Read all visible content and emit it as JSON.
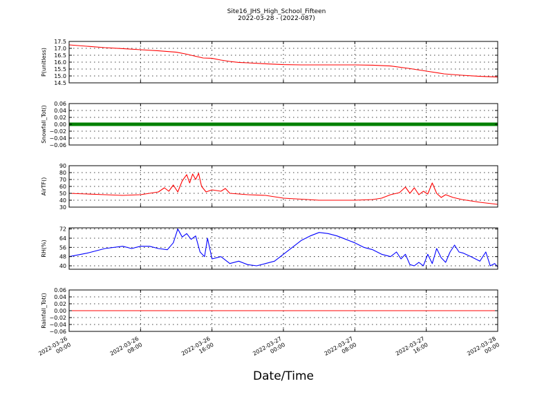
{
  "figure": {
    "title_line1": "Site16_JHS_High_School_Fifteen",
    "title_line2": "2022-03-28 - (2022-087)",
    "xlabel": "Date/Time",
    "x_range": [
      "2022-03-26 00:00",
      "2022-03-28 00:00"
    ],
    "x_tick_labels": [
      [
        "2022-03-26",
        "00:00"
      ],
      [
        "2022-03-26",
        "08:00"
      ],
      [
        "2022-03-26",
        "16:00"
      ],
      [
        "2022-03-27",
        "00:00"
      ],
      [
        "2022-03-27",
        "08:00"
      ],
      [
        "2022-03-27",
        "16:00"
      ],
      [
        "2022-03-28",
        "00:00"
      ]
    ],
    "x_tick_hours": [
      0,
      8,
      16,
      24,
      32,
      40,
      48
    ]
  },
  "chart_data": [
    {
      "type": "line",
      "ylabel": "P(unitless)",
      "color": "#ff0000",
      "ylim": [
        14.5,
        17.5
      ],
      "yticks": [
        14.5,
        15.0,
        15.5,
        16.0,
        16.5,
        17.0,
        17.5
      ],
      "ytick_labels": [
        "14.5",
        "15.0",
        "15.5",
        "16.0",
        "16.5",
        "17.0",
        "17.5"
      ],
      "grid": true,
      "points": [
        [
          "2022-03-26 00:00",
          17.25
        ],
        [
          "2022-03-26 02:00",
          17.15
        ],
        [
          "2022-03-26 04:00",
          17.05
        ],
        [
          "2022-03-26 06:00",
          16.98
        ],
        [
          "2022-03-26 08:00",
          16.9
        ],
        [
          "2022-03-26 10:00",
          16.82
        ],
        [
          "2022-03-26 12:00",
          16.72
        ],
        [
          "2022-03-26 13:00",
          16.6
        ],
        [
          "2022-03-26 14:00",
          16.45
        ],
        [
          "2022-03-26 15:00",
          16.3
        ],
        [
          "2022-03-26 16:00",
          16.28
        ],
        [
          "2022-03-26 17:00",
          16.15
        ],
        [
          "2022-03-26 18:00",
          16.05
        ],
        [
          "2022-03-26 19:00",
          15.98
        ],
        [
          "2022-03-26 20:00",
          15.95
        ],
        [
          "2022-03-26 22:00",
          15.88
        ],
        [
          "2022-03-27 00:00",
          15.82
        ],
        [
          "2022-03-27 02:00",
          15.8
        ],
        [
          "2022-03-27 04:00",
          15.8
        ],
        [
          "2022-03-27 06:00",
          15.8
        ],
        [
          "2022-03-27 08:00",
          15.8
        ],
        [
          "2022-03-27 10:00",
          15.78
        ],
        [
          "2022-03-27 12:00",
          15.72
        ],
        [
          "2022-03-27 14:00",
          15.55
        ],
        [
          "2022-03-27 16:00",
          15.35
        ],
        [
          "2022-03-27 18:00",
          15.15
        ],
        [
          "2022-03-27 20:00",
          15.05
        ],
        [
          "2022-03-27 22:00",
          14.97
        ],
        [
          "2022-03-28 00:00",
          14.92
        ]
      ]
    },
    {
      "type": "line",
      "ylabel": "Snowfall_Tot()",
      "color": "#008000",
      "thick": true,
      "ylim": [
        -0.06,
        0.06
      ],
      "yticks": [
        -0.06,
        -0.04,
        -0.02,
        0.0,
        0.02,
        0.04,
        0.06
      ],
      "ytick_labels": [
        "−0.06",
        "−0.04",
        "−0.02",
        "0.00",
        "0.02",
        "0.04",
        "0.06"
      ],
      "grid": true,
      "points": [
        [
          "2022-03-26 00:00",
          0.0
        ],
        [
          "2022-03-28 00:00",
          0.0
        ]
      ]
    },
    {
      "type": "line",
      "ylabel": "AirTF()",
      "color": "#ff0000",
      "ylim": [
        30,
        90
      ],
      "yticks": [
        30,
        40,
        50,
        60,
        70,
        80,
        90
      ],
      "ytick_labels": [
        "30",
        "40",
        "50",
        "60",
        "70",
        "80",
        "90"
      ],
      "grid": true,
      "points": [
        [
          "2022-03-26 00:00",
          50
        ],
        [
          "2022-03-26 02:00",
          49
        ],
        [
          "2022-03-26 04:00",
          48
        ],
        [
          "2022-03-26 06:00",
          47
        ],
        [
          "2022-03-26 08:00",
          48
        ],
        [
          "2022-03-26 09:00",
          50
        ],
        [
          "2022-03-26 10:00",
          52
        ],
        [
          "2022-03-26 10:40",
          58
        ],
        [
          "2022-03-26 11:10",
          53
        ],
        [
          "2022-03-26 11:40",
          62
        ],
        [
          "2022-03-26 12:10",
          52
        ],
        [
          "2022-03-26 12:40",
          68
        ],
        [
          "2022-03-26 13:10",
          77
        ],
        [
          "2022-03-26 13:30",
          65
        ],
        [
          "2022-03-26 13:50",
          78
        ],
        [
          "2022-03-26 14:10",
          70
        ],
        [
          "2022-03-26 14:30",
          79
        ],
        [
          "2022-03-26 14:50",
          60
        ],
        [
          "2022-03-26 15:20",
          52
        ],
        [
          "2022-03-26 16:00",
          55
        ],
        [
          "2022-03-26 17:00",
          53
        ],
        [
          "2022-03-26 17:30",
          57
        ],
        [
          "2022-03-26 18:00",
          50
        ],
        [
          "2022-03-26 20:00",
          48
        ],
        [
          "2022-03-26 22:00",
          47
        ],
        [
          "2022-03-27 00:00",
          43
        ],
        [
          "2022-03-27 04:00",
          40
        ],
        [
          "2022-03-27 08:00",
          40
        ],
        [
          "2022-03-27 10:00",
          41
        ],
        [
          "2022-03-27 11:00",
          43
        ],
        [
          "2022-03-27 12:00",
          48
        ],
        [
          "2022-03-27 13:00",
          51
        ],
        [
          "2022-03-27 13:40",
          59
        ],
        [
          "2022-03-27 14:10",
          50
        ],
        [
          "2022-03-27 14:40",
          58
        ],
        [
          "2022-03-27 15:10",
          48
        ],
        [
          "2022-03-27 15:40",
          53
        ],
        [
          "2022-03-27 16:10",
          49
        ],
        [
          "2022-03-27 16:40",
          65
        ],
        [
          "2022-03-27 17:10",
          50
        ],
        [
          "2022-03-27 17:40",
          44
        ],
        [
          "2022-03-27 18:10",
          48
        ],
        [
          "2022-03-27 19:00",
          44
        ],
        [
          "2022-03-27 20:00",
          41
        ],
        [
          "2022-03-27 22:00",
          37
        ],
        [
          "2022-03-28 00:00",
          34
        ]
      ]
    },
    {
      "type": "line",
      "ylabel": "RH(%)",
      "color": "#0000ff",
      "ylim": [
        37,
        73
      ],
      "yticks": [
        40,
        48,
        56,
        64,
        72
      ],
      "ytick_labels": [
        "40",
        "48",
        "56",
        "64",
        "72"
      ],
      "grid": true,
      "points": [
        [
          "2022-03-26 00:00",
          48
        ],
        [
          "2022-03-26 02:00",
          51
        ],
        [
          "2022-03-26 04:00",
          55
        ],
        [
          "2022-03-26 06:00",
          57
        ],
        [
          "2022-03-26 07:00",
          55
        ],
        [
          "2022-03-26 08:00",
          57
        ],
        [
          "2022-03-26 09:00",
          57
        ],
        [
          "2022-03-26 10:00",
          55
        ],
        [
          "2022-03-26 11:00",
          54
        ],
        [
          "2022-03-26 11:40",
          60
        ],
        [
          "2022-03-26 12:10",
          72
        ],
        [
          "2022-03-26 12:40",
          65
        ],
        [
          "2022-03-26 13:10",
          68
        ],
        [
          "2022-03-26 13:40",
          63
        ],
        [
          "2022-03-26 14:10",
          66
        ],
        [
          "2022-03-26 14:40",
          52
        ],
        [
          "2022-03-26 15:10",
          48
        ],
        [
          "2022-03-26 15:30",
          64
        ],
        [
          "2022-03-26 16:00",
          46
        ],
        [
          "2022-03-26 17:00",
          48
        ],
        [
          "2022-03-26 18:00",
          42
        ],
        [
          "2022-03-26 19:00",
          44
        ],
        [
          "2022-03-26 20:00",
          41
        ],
        [
          "2022-03-26 21:00",
          40
        ],
        [
          "2022-03-26 22:00",
          42
        ],
        [
          "2022-03-26 23:00",
          44
        ],
        [
          "2022-03-27 00:00",
          50
        ],
        [
          "2022-03-27 01:00",
          56
        ],
        [
          "2022-03-27 02:00",
          62
        ],
        [
          "2022-03-27 03:00",
          66
        ],
        [
          "2022-03-27 04:00",
          69
        ],
        [
          "2022-03-27 05:00",
          68
        ],
        [
          "2022-03-27 06:00",
          66
        ],
        [
          "2022-03-27 07:00",
          63
        ],
        [
          "2022-03-27 08:00",
          60
        ],
        [
          "2022-03-27 09:00",
          56
        ],
        [
          "2022-03-27 10:00",
          54
        ],
        [
          "2022-03-27 11:00",
          50
        ],
        [
          "2022-03-27 12:00",
          48
        ],
        [
          "2022-03-27 12:40",
          52
        ],
        [
          "2022-03-27 13:10",
          46
        ],
        [
          "2022-03-27 13:40",
          50
        ],
        [
          "2022-03-27 14:10",
          41
        ],
        [
          "2022-03-27 14:40",
          40
        ],
        [
          "2022-03-27 15:10",
          43
        ],
        [
          "2022-03-27 15:40",
          40
        ],
        [
          "2022-03-27 16:10",
          50
        ],
        [
          "2022-03-27 16:40",
          42
        ],
        [
          "2022-03-27 17:10",
          55
        ],
        [
          "2022-03-27 17:40",
          47
        ],
        [
          "2022-03-27 18:10",
          43
        ],
        [
          "2022-03-27 18:40",
          52
        ],
        [
          "2022-03-27 19:10",
          58
        ],
        [
          "2022-03-27 19:40",
          52
        ],
        [
          "2022-03-27 20:10",
          51
        ],
        [
          "2022-03-27 21:00",
          48
        ],
        [
          "2022-03-27 22:00",
          44
        ],
        [
          "2022-03-27 22:40",
          52
        ],
        [
          "2022-03-27 23:10",
          40
        ],
        [
          "2022-03-27 23:40",
          42
        ],
        [
          "2022-03-28 00:00",
          39
        ]
      ]
    },
    {
      "type": "line",
      "ylabel": "Rainfall_Tot()",
      "color": "#ff0000",
      "ylim": [
        -0.06,
        0.06
      ],
      "yticks": [
        -0.06,
        -0.04,
        -0.02,
        0.0,
        0.02,
        0.04,
        0.06
      ],
      "ytick_labels": [
        "−0.06",
        "−0.04",
        "−0.02",
        "0.00",
        "0.02",
        "0.04",
        "0.06"
      ],
      "grid": true,
      "points": [
        [
          "2022-03-26 00:00",
          0.0
        ],
        [
          "2022-03-28 00:00",
          0.0
        ]
      ]
    }
  ]
}
